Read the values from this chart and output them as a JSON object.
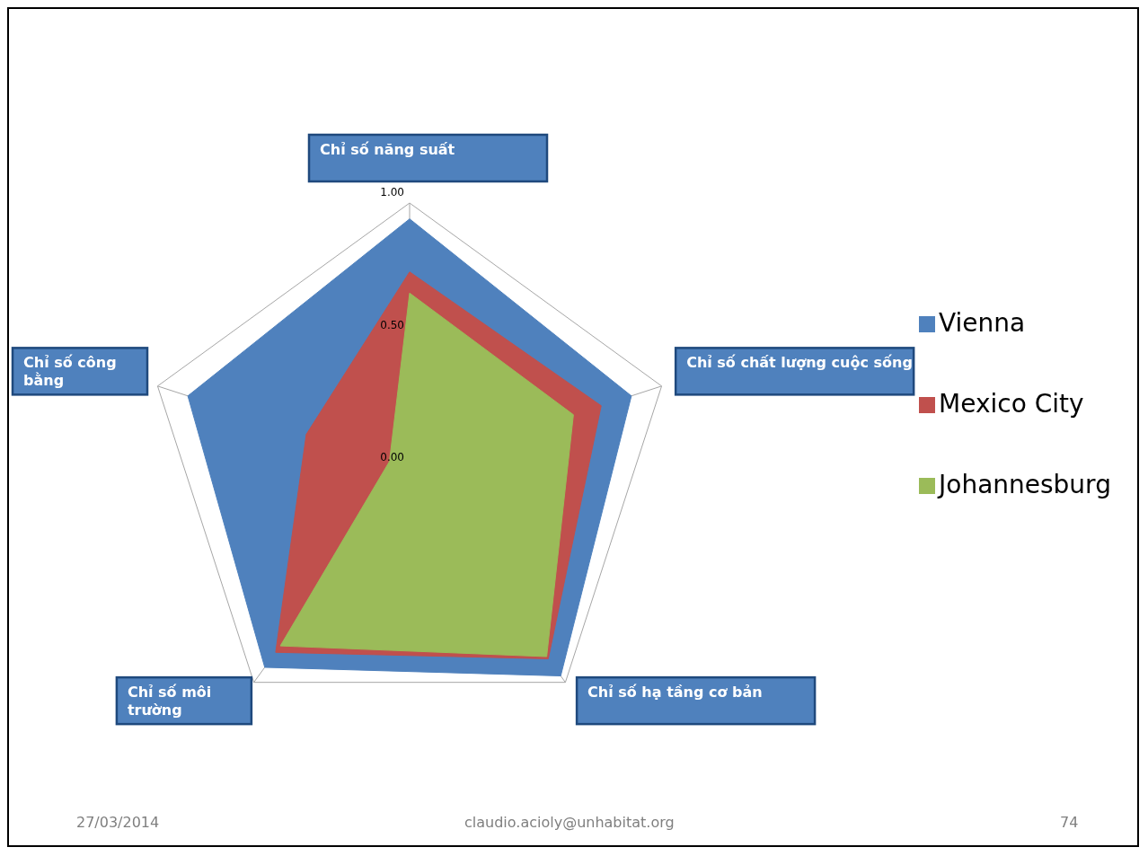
{
  "chart_data": {
    "type": "radar",
    "categories": [
      "Chỉ số năng suất",
      "Chỉ số chất lượng cuộc sống",
      "Chỉ số hạ tầng cơ bản",
      "Chỉ số môi trường",
      "Chỉ số công bằng"
    ],
    "series": [
      {
        "name": "Vienna",
        "color": "#4f81bd",
        "values": [
          0.94,
          0.88,
          0.97,
          0.93,
          0.88
        ]
      },
      {
        "name": "Mexico City",
        "color": "#c0504d",
        "values": [
          0.74,
          0.76,
          0.89,
          0.86,
          0.41
        ]
      },
      {
        "name": "Johannesburg",
        "color": "#9bbb59",
        "values": [
          0.66,
          0.65,
          0.88,
          0.83,
          0.08
        ]
      }
    ],
    "ylim": [
      0,
      1
    ],
    "yticks": [
      {
        "value": 0,
        "label": "0.00"
      },
      {
        "value": 0.5,
        "label": "0.50"
      },
      {
        "value": 1,
        "label": "1.00"
      }
    ],
    "grid": true,
    "legend": "right",
    "annotations": [
      "27/03/2014",
      "claudio.acioly@unhabitat.org",
      "74"
    ]
  }
}
